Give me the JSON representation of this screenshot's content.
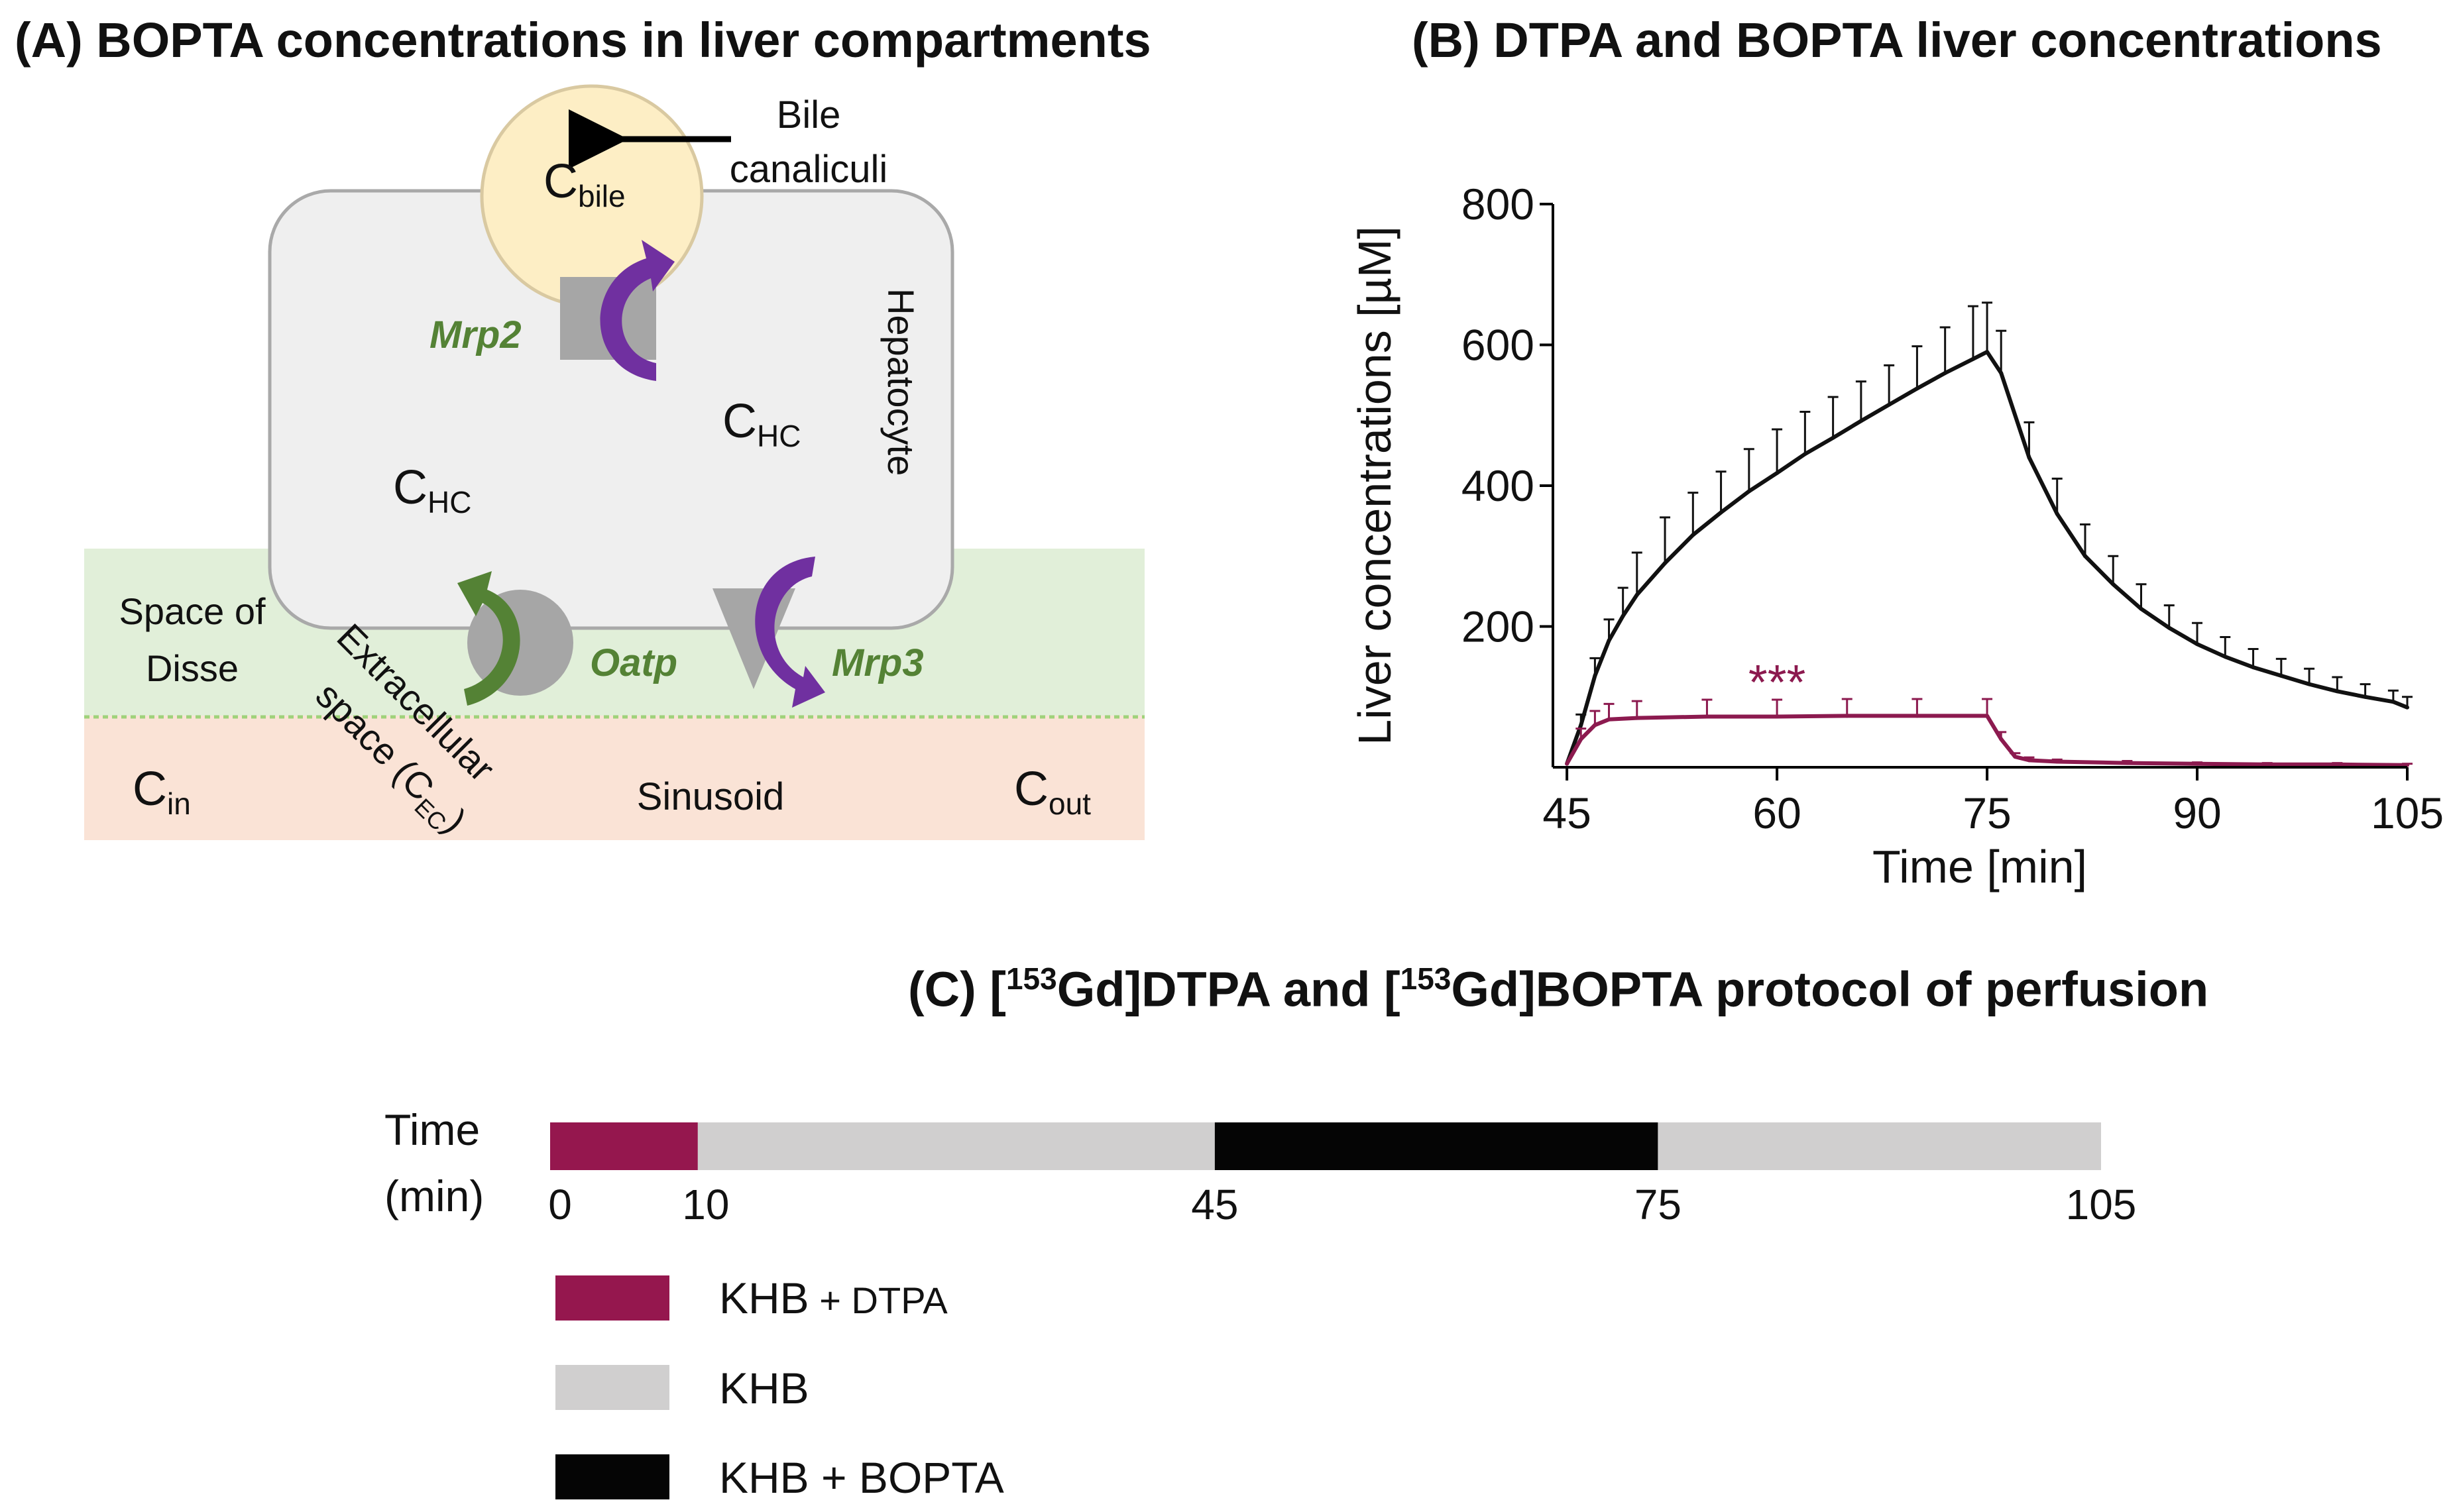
{
  "panelA": {
    "title": "(A) BOPTA concentrations in liver compartments",
    "labels": {
      "bile_top": "Bile",
      "bile_bottom": "canaliculi",
      "c_bile_main": "C",
      "c_bile_sub": "bile",
      "mrp2": "Mrp2",
      "hepatocyte": "Hepatocyte",
      "c_hc_main": "C",
      "c_hc_sub": "HC",
      "space_disse_1": "Space of",
      "space_disse_2": "Disse",
      "oatp": "Oatp",
      "mrp3": "Mrp3",
      "extracellular_1": "Extracellular",
      "extracellular_2": "space (C",
      "extracellular_sub": "EC",
      "extracellular_close": ")",
      "c_in_main": "C",
      "c_in_sub": "in",
      "sinusoid": "Sinusoid",
      "c_out_main": "C",
      "c_out_sub": "out"
    },
    "colors": {
      "bile": "#fdeec5",
      "hepatocyte": "#efefef",
      "disse": "#e1efd9",
      "sinusoid": "#fae3d6",
      "transporter": "#a6a6a6",
      "green": "#548235",
      "purple": "#7030a0"
    }
  },
  "chart_data": {
    "type": "line",
    "title": "(B) DTPA and BOPTA liver concentrations",
    "xlabel": "Time [min]",
    "ylabel": "Liver concentrations [µM]",
    "xlim": [
      44,
      105
    ],
    "ylim": [
      0,
      800
    ],
    "xticks": [
      45,
      60,
      75,
      90,
      105
    ],
    "yticks": [
      200,
      400,
      600,
      800
    ],
    "annotation": "***",
    "annotation_at": [
      60,
      125
    ],
    "series": [
      {
        "name": "DTPA",
        "color": "#111111",
        "x": [
          45,
          46,
          47,
          48,
          49,
          50,
          52,
          54,
          56,
          58,
          60,
          62,
          64,
          66,
          68,
          70,
          72,
          74,
          75,
          76,
          78,
          80,
          82,
          84,
          86,
          88,
          90,
          92,
          94,
          96,
          98,
          100,
          102,
          104,
          105
        ],
        "y": [
          5,
          60,
          130,
          180,
          215,
          245,
          290,
          330,
          362,
          392,
          418,
          445,
          468,
          492,
          515,
          538,
          560,
          580,
          590,
          560,
          440,
          360,
          300,
          260,
          225,
          198,
          175,
          157,
          142,
          130,
          118,
          108,
          100,
          93,
          85
        ],
        "error": [
          0,
          15,
          25,
          30,
          40,
          60,
          65,
          60,
          58,
          60,
          62,
          60,
          58,
          56,
          56,
          60,
          65,
          75,
          70,
          60,
          50,
          50,
          45,
          40,
          35,
          32,
          30,
          28,
          26,
          24,
          22,
          20,
          18,
          16,
          15
        ]
      },
      {
        "name": "BOPTA",
        "color": "#8c1a4f",
        "x": [
          45,
          46,
          47,
          48,
          50,
          55,
          60,
          65,
          70,
          75,
          76,
          77,
          78,
          80,
          85,
          90,
          95,
          100,
          105
        ],
        "y": [
          5,
          40,
          60,
          68,
          70,
          72,
          72,
          73,
          73,
          73,
          40,
          15,
          10,
          8,
          6,
          5,
          4,
          4,
          3
        ],
        "error": [
          0,
          15,
          20,
          22,
          24,
          24,
          24,
          24,
          24,
          24,
          10,
          5,
          4,
          3,
          3,
          2,
          2,
          2,
          2
        ]
      }
    ]
  },
  "panelC": {
    "title_pre": "(C) [",
    "sup1": "153",
    "title_mid": "Gd]DTPA and [",
    "sup2": "153",
    "title_post": "Gd]BOPTA protocol of perfusion",
    "time_label": "Time",
    "unit_label": "(min)",
    "segments": [
      {
        "start": 0,
        "end": 10,
        "color": "#95174e"
      },
      {
        "start": 10,
        "end": 45,
        "color": "#d0cfcf"
      },
      {
        "start": 45,
        "end": 75,
        "color": "#050505"
      },
      {
        "start": 75,
        "end": 105,
        "color": "#d0cfcf"
      }
    ],
    "tick_labels": [
      "0",
      "10",
      "45",
      "75",
      "105"
    ],
    "legend": [
      {
        "label_main": "KHB",
        "label_small": " + DTPA",
        "color": "#95174e"
      },
      {
        "label_main": "KHB",
        "label_small": "",
        "color": "#d0cfcf"
      },
      {
        "label_main": "KHB + BOPTA",
        "label_small": "",
        "color": "#050505"
      }
    ]
  }
}
